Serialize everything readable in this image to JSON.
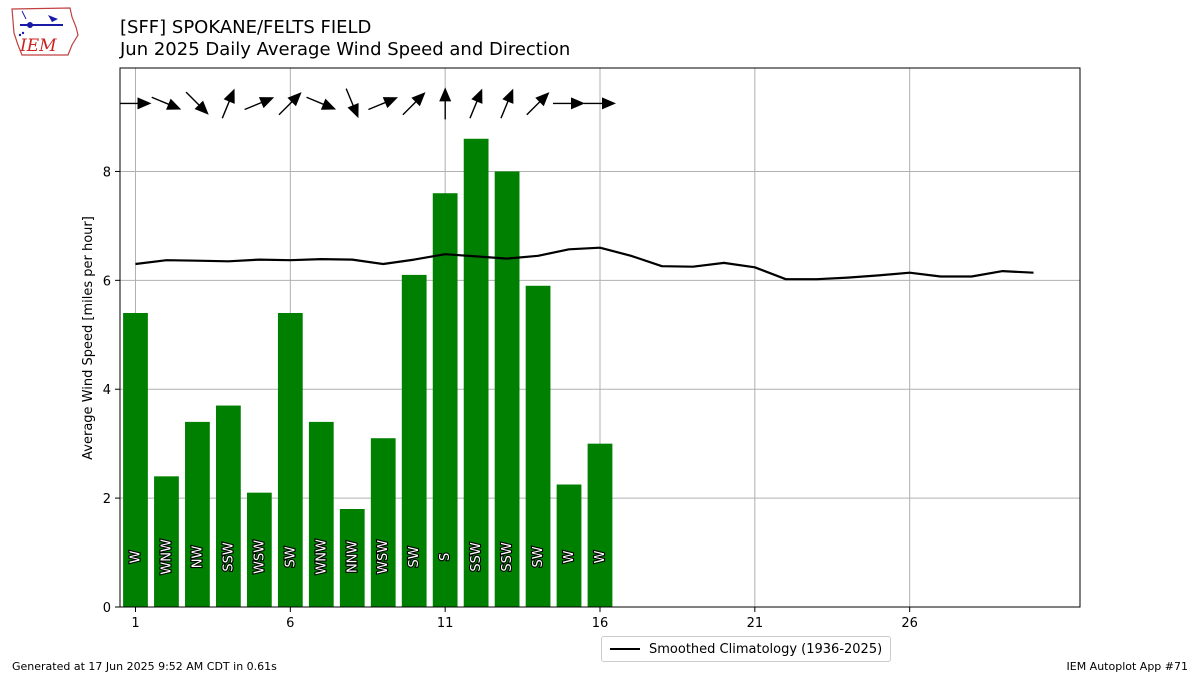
{
  "header": {
    "title_line1": "[SFF] SPOKANE/FELTS FIELD",
    "title_line2": "Jun 2025 Daily Average Wind Speed and Direction",
    "logo_text": "IEM"
  },
  "footer": {
    "generated": "Generated at 17 Jun 2025 9:52 AM CDT in 0.61s",
    "app": "IEM Autoplot App #71"
  },
  "legend": {
    "label": "Smoothed Climatology (1936-2025)",
    "placement": "below-center"
  },
  "colors": {
    "bar": "#008000",
    "climatology": "#000000",
    "grid": "#b0b0b0"
  },
  "chart_data": {
    "type": "bar",
    "title": "[SFF] SPOKANE/FELTS FIELD\nJun 2025 Daily Average Wind Speed and Direction",
    "xlabel": "",
    "ylabel": "Average Wind Speed [miles per hour]",
    "xlim": [
      0.5,
      31.5
    ],
    "ylim": [
      0,
      9.9
    ],
    "xticks": [
      1,
      6,
      11,
      16,
      21,
      26
    ],
    "yticks": [
      0,
      2,
      4,
      6,
      8
    ],
    "grid": true,
    "days": [
      1,
      2,
      3,
      4,
      5,
      6,
      7,
      8,
      9,
      10,
      11,
      12,
      13,
      14,
      15,
      16
    ],
    "speeds": [
      5.4,
      2.4,
      3.4,
      3.7,
      2.1,
      5.4,
      3.4,
      1.8,
      3.1,
      6.1,
      7.6,
      8.6,
      8.0,
      5.9,
      2.25,
      3.0
    ],
    "directions": [
      "W",
      "WNW",
      "NW",
      "SSW",
      "WSW",
      "SW",
      "WNW",
      "NNW",
      "WSW",
      "SW",
      "S",
      "SSW",
      "SSW",
      "SW",
      "W",
      "W"
    ],
    "climatology": {
      "name": "Smoothed Climatology (1936-2025)",
      "x": [
        1,
        2,
        3,
        4,
        5,
        6,
        7,
        8,
        9,
        10,
        11,
        12,
        13,
        14,
        15,
        16,
        17,
        18,
        19,
        20,
        21,
        22,
        23,
        24,
        25,
        26,
        27,
        28,
        29,
        30
      ],
      "y": [
        6.3,
        6.37,
        6.36,
        6.35,
        6.38,
        6.37,
        6.39,
        6.38,
        6.3,
        6.38,
        6.48,
        6.44,
        6.4,
        6.45,
        6.57,
        6.6,
        6.45,
        6.26,
        6.25,
        6.32,
        6.24,
        6.02,
        6.02,
        6.05,
        6.09,
        6.14,
        6.07,
        6.07,
        6.17,
        6.14
      ]
    }
  }
}
